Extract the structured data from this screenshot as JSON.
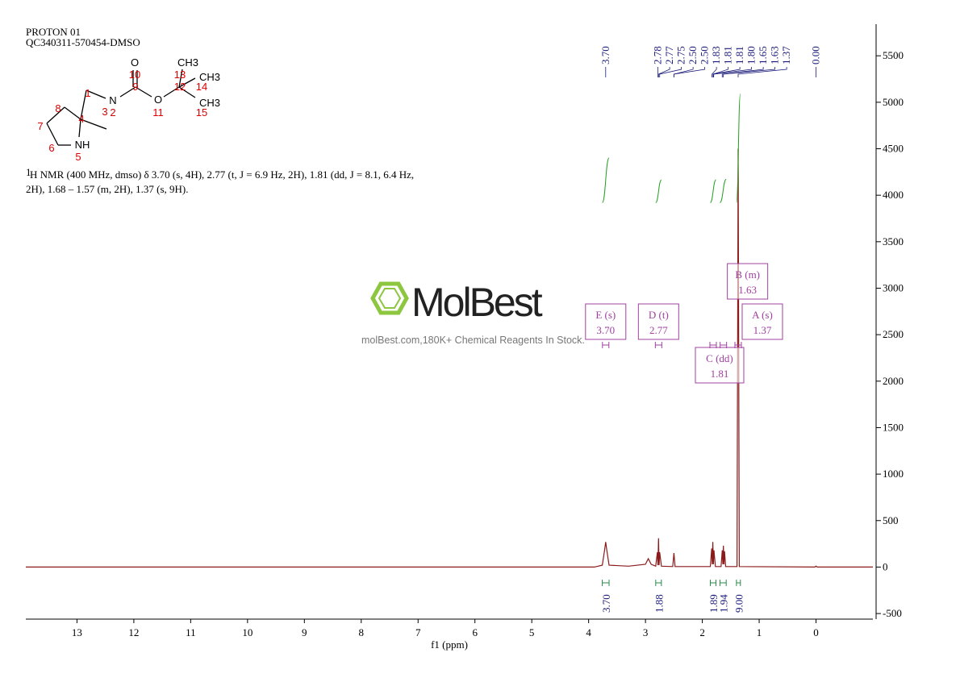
{
  "header": {
    "experiment": "PROTON 01",
    "sample": "QC340311-570454-DMSO"
  },
  "molecule": {
    "atoms": [
      "O",
      "10",
      "9",
      "N",
      "2",
      "1",
      "4",
      "3",
      "8",
      "7",
      "6",
      "NH",
      "5",
      "O",
      "11",
      "12",
      "13",
      "CH3",
      "14",
      "CH3",
      "CH3",
      "15"
    ]
  },
  "description": {
    "superscript": "1",
    "lines": [
      "H NMR (400 MHz, dmso) δ 3.70 (s, 4H), 2.77 (t, J = 6.9 Hz, 2H), 1.81 (dd, J = 8.1, 6.4 Hz,",
      "2H), 1.68 – 1.57 (m, 2H), 1.37 (s, 9H)."
    ]
  },
  "watermark": {
    "brand": "MolBest",
    "tagline": "molBest.com,180K+ Chemical Reagents In Stock."
  },
  "chart_data": {
    "type": "line",
    "xlabel": "f1 (ppm)",
    "color": "#8b1a1a",
    "xlim": [
      13.9,
      -1.0
    ],
    "xticks": [
      13,
      12,
      11,
      10,
      9,
      8,
      7,
      6,
      5,
      4,
      3,
      2,
      1,
      0
    ],
    "ylim": [
      -560,
      5840
    ],
    "yticks": [
      -500,
      0,
      500,
      1000,
      1500,
      2000,
      2500,
      3000,
      3500,
      4000,
      4500,
      5000,
      5500
    ],
    "x": [
      13.9,
      3.9,
      3.76,
      3.72,
      3.7,
      3.68,
      3.64,
      3.3,
      3.0,
      2.95,
      2.9,
      2.82,
      2.79,
      2.78,
      2.77,
      2.76,
      2.75,
      2.72,
      2.52,
      2.5,
      2.48,
      1.86,
      1.835,
      1.825,
      1.815,
      1.805,
      1.795,
      1.77,
      1.67,
      1.65,
      1.64,
      1.63,
      1.62,
      1.61,
      1.59,
      1.39,
      1.37,
      1.35,
      0.02,
      0.0,
      -0.02,
      -1.0
    ],
    "values": [
      0,
      0,
      20,
      180,
      270,
      180,
      20,
      10,
      30,
      90,
      30,
      10,
      160,
      20,
      310,
      20,
      160,
      10,
      5,
      150,
      5,
      5,
      200,
      30,
      270,
      30,
      180,
      5,
      5,
      180,
      30,
      230,
      30,
      170,
      5,
      5,
      4500,
      5,
      0,
      10,
      0,
      0
    ],
    "peak_labels": [
      {
        "value": 3.7,
        "label": "3.70"
      },
      2.78,
      2.77,
      2.75,
      {
        "value": 2.5,
        "label": "2.50"
      },
      {
        "value": 2.5,
        "label": "2.50"
      },
      1.83,
      1.81,
      1.81,
      {
        "value": 1.8,
        "label": "1.80"
      },
      1.65,
      1.63,
      1.37,
      {
        "value": 0,
        "label": "0.00"
      }
    ],
    "integrals": [
      {
        "range": [
          3.76,
          3.64
        ],
        "value": {
          "value": 3.7,
          "label": "3.70"
        }
      },
      {
        "range": [
          2.82,
          2.72
        ],
        "value": 1.88
      },
      {
        "range": [
          1.86,
          1.76
        ],
        "value": 1.89
      },
      {
        "range": [
          1.69,
          1.58
        ],
        "value": 1.94
      },
      {
        "range": [
          1.4,
          1.33
        ],
        "value": {
          "value": 9,
          "label": "9.00"
        }
      }
    ],
    "multiplets": [
      {
        "name": "E (s)",
        "shift": {
          "value": 3.7,
          "label": "3.70"
        }
      },
      {
        "name": "D (t)",
        "shift": 2.77
      },
      {
        "name": "C (dd)",
        "shift": 1.81
      },
      {
        "name": "B (m)",
        "shift": 1.63
      },
      {
        "name": "A (s)",
        "shift": 1.37
      }
    ]
  }
}
